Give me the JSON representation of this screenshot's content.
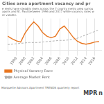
{
  "chart_data": {
    "type": "line",
    "title": "Cities area apartment vacancy and pr",
    "subtitle": [
      "e rents have steadily risen across the 7 county metro area surrou",
      "apolis and St. Paul between 1996 and 2017 while vacancy rates w",
      "re volatile."
    ],
    "x": [
      1996,
      1997,
      1998,
      1999,
      2000,
      2001,
      2002,
      2003,
      2004,
      2005,
      2006,
      2007,
      2008,
      2009,
      2010,
      2011,
      2012,
      2013,
      2014,
      2015,
      2016,
      2017
    ],
    "series": [
      {
        "name": "Physical Vacancy Race",
        "color": "#e87722",
        "line_style": "solid",
        "values": [
          0.38,
          0.32,
          0.27,
          0.24,
          0.45,
          0.6,
          0.72,
          0.62,
          0.47,
          0.38,
          0.34,
          0.38,
          0.55,
          0.62,
          0.5,
          0.36,
          0.26,
          0.21,
          0.19,
          0.21,
          0.24,
          0.25
        ]
      },
      {
        "name": "Average Market Rent",
        "color": "#b0b0b0",
        "line_style": "dashed",
        "values": [
          0.18,
          0.19,
          0.2,
          0.21,
          0.22,
          0.23,
          0.23,
          0.23,
          0.24,
          0.25,
          0.26,
          0.27,
          0.28,
          0.28,
          0.29,
          0.31,
          0.33,
          0.37,
          0.41,
          0.45,
          0.49,
          0.53
        ]
      }
    ],
    "xlim": [
      1996,
      2017.5
    ],
    "xticks": [
      1998,
      2000,
      2002,
      2004,
      2006,
      2008,
      2010,
      2012,
      2014,
      2016
    ],
    "ylim": [
      0.05,
      0.8
    ],
    "tick_labels": "x",
    "grid": true,
    "legend": "bottom",
    "annotations": [
      "Marquette Advisors Apartment TRENDS quarterly report",
      "MPR",
      "n"
    ]
  }
}
